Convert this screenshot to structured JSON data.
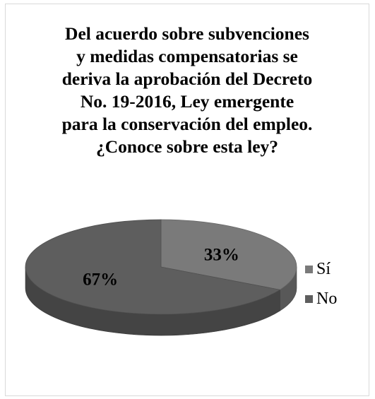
{
  "chart_data": {
    "type": "pie",
    "three_d": true,
    "title": "Del acuerdo sobre subvenciones\ny medidas compensatorias se\nderiva la aprobación del Decreto\nNo. 19-2016, Ley emergente\npara la conservación del empleo.\n¿Conoce sobre esta ley?",
    "categories": [
      "Sí",
      "No"
    ],
    "values": [
      33,
      67
    ],
    "data_labels": [
      "33%",
      "67%"
    ],
    "colors": [
      "#7a7a7a",
      "#5e5e5e"
    ],
    "legend_position": "right"
  }
}
